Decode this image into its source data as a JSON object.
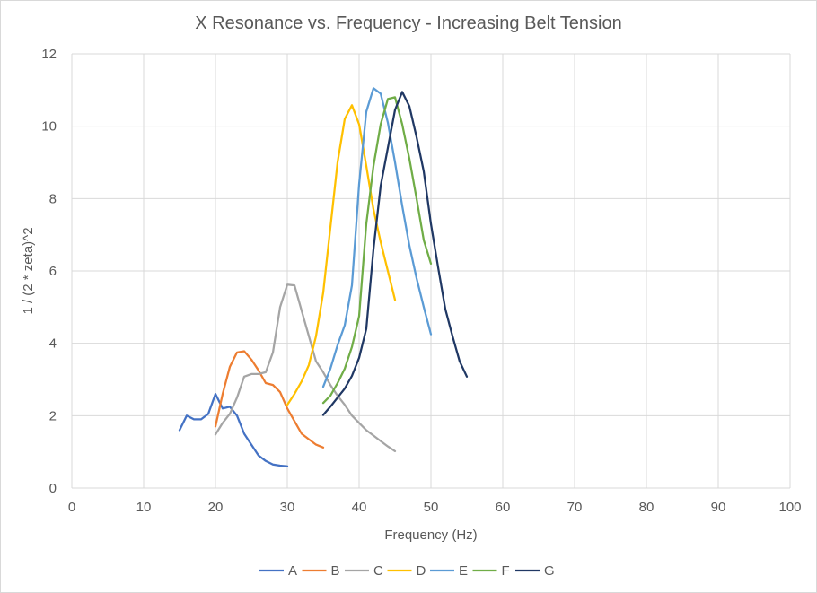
{
  "chart_data": {
    "type": "line",
    "title": "X Resonance vs. Frequency - Increasing Belt Tension",
    "xlabel": "Frequency (Hz)",
    "ylabel": "1 / (2 * zeta)^2",
    "xlim": [
      0,
      100
    ],
    "ylim": [
      0,
      12
    ],
    "xticks": [
      0,
      10,
      20,
      30,
      40,
      50,
      60,
      70,
      80,
      90,
      100
    ],
    "yticks": [
      0,
      2,
      4,
      6,
      8,
      10,
      12
    ],
    "grid": "on",
    "legend": "bottom",
    "series": [
      {
        "name": "A",
        "color": "#4472c4",
        "x": [
          15,
          16,
          17,
          18,
          19,
          20,
          21,
          22,
          23,
          24,
          25,
          26,
          27,
          28,
          29,
          30
        ],
        "y": [
          1.6,
          2.0,
          1.9,
          1.9,
          2.05,
          2.6,
          2.2,
          2.25,
          2.0,
          1.5,
          1.2,
          0.9,
          0.75,
          0.65,
          0.62,
          0.6
        ]
      },
      {
        "name": "B",
        "color": "#ed7d31",
        "x": [
          20,
          21,
          22,
          23,
          24,
          25,
          26,
          27,
          28,
          29,
          30,
          31,
          32,
          33,
          34,
          35
        ],
        "y": [
          1.7,
          2.6,
          3.35,
          3.75,
          3.78,
          3.55,
          3.25,
          2.9,
          2.85,
          2.65,
          2.2,
          1.85,
          1.5,
          1.35,
          1.2,
          1.12
        ]
      },
      {
        "name": "C",
        "color": "#a5a5a5",
        "x": [
          20,
          21,
          22,
          23,
          24,
          25,
          26,
          27,
          28,
          29,
          30,
          31,
          32,
          33,
          34,
          35,
          36,
          37,
          38,
          39,
          40,
          41,
          42,
          43,
          44,
          45
        ],
        "y": [
          1.48,
          1.8,
          2.05,
          2.5,
          3.08,
          3.15,
          3.15,
          3.2,
          3.75,
          5.0,
          5.62,
          5.6,
          4.9,
          4.2,
          3.5,
          3.2,
          2.85,
          2.55,
          2.3,
          2.0,
          1.8,
          1.6,
          1.45,
          1.3,
          1.15,
          1.02
        ]
      },
      {
        "name": "D",
        "color": "#ffc000",
        "x": [
          30,
          31,
          32,
          33,
          34,
          35,
          36,
          37,
          38,
          39,
          40,
          41,
          42,
          43,
          44,
          45
        ],
        "y": [
          2.3,
          2.6,
          2.95,
          3.4,
          4.2,
          5.4,
          7.2,
          9.0,
          10.2,
          10.58,
          10.05,
          8.9,
          7.7,
          6.8,
          6.0,
          5.2
        ]
      },
      {
        "name": "E",
        "color": "#5b9bd5",
        "x": [
          35,
          36,
          37,
          38,
          39,
          40,
          41,
          42,
          43,
          44,
          45,
          46,
          47,
          48,
          49,
          50
        ],
        "y": [
          2.8,
          3.3,
          3.95,
          4.5,
          5.6,
          8.4,
          10.4,
          11.05,
          10.9,
          10.1,
          9.0,
          7.8,
          6.7,
          5.8,
          5.0,
          4.25
        ]
      },
      {
        "name": "F",
        "color": "#70ad47",
        "x": [
          35,
          36,
          37,
          38,
          39,
          40,
          41,
          42,
          43,
          44,
          45,
          46,
          47,
          48,
          49,
          50
        ],
        "y": [
          2.35,
          2.55,
          2.9,
          3.3,
          3.9,
          4.75,
          7.3,
          8.9,
          10.05,
          10.75,
          10.8,
          10.05,
          9.1,
          8.0,
          6.85,
          6.2
        ]
      },
      {
        "name": "G",
        "color": "#203864",
        "x": [
          35,
          36,
          37,
          38,
          39,
          40,
          41,
          42,
          43,
          44,
          45,
          46,
          47,
          48,
          49,
          50,
          51,
          52,
          53,
          54,
          55
        ],
        "y": [
          2.02,
          2.25,
          2.5,
          2.75,
          3.1,
          3.6,
          4.4,
          6.6,
          8.35,
          9.4,
          10.45,
          10.95,
          10.55,
          9.7,
          8.75,
          7.3,
          6.1,
          4.95,
          4.2,
          3.5,
          3.08
        ]
      }
    ]
  }
}
